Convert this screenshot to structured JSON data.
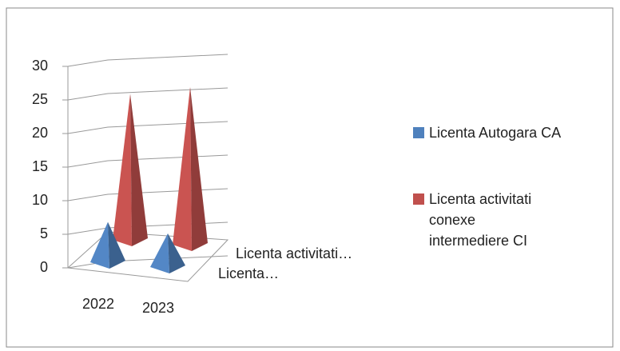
{
  "chart_data": {
    "type": "pyramid3d",
    "categories": [
      "2022",
      "2023"
    ],
    "series": [
      {
        "name": "Licenta Autogara CA",
        "short_name": "Licenta…",
        "color": "#4f81bd",
        "values": [
          6,
          5
        ]
      },
      {
        "name": "Licenta activitati conexe intermediere CI",
        "short_name": "Licenta activitati…",
        "color": "#c0504d",
        "values": [
          25,
          27
        ]
      }
    ],
    "ylim": [
      0,
      30
    ],
    "yticks": [
      0,
      5,
      10,
      15,
      20,
      25,
      30
    ],
    "grid": true,
    "legend": "right"
  }
}
